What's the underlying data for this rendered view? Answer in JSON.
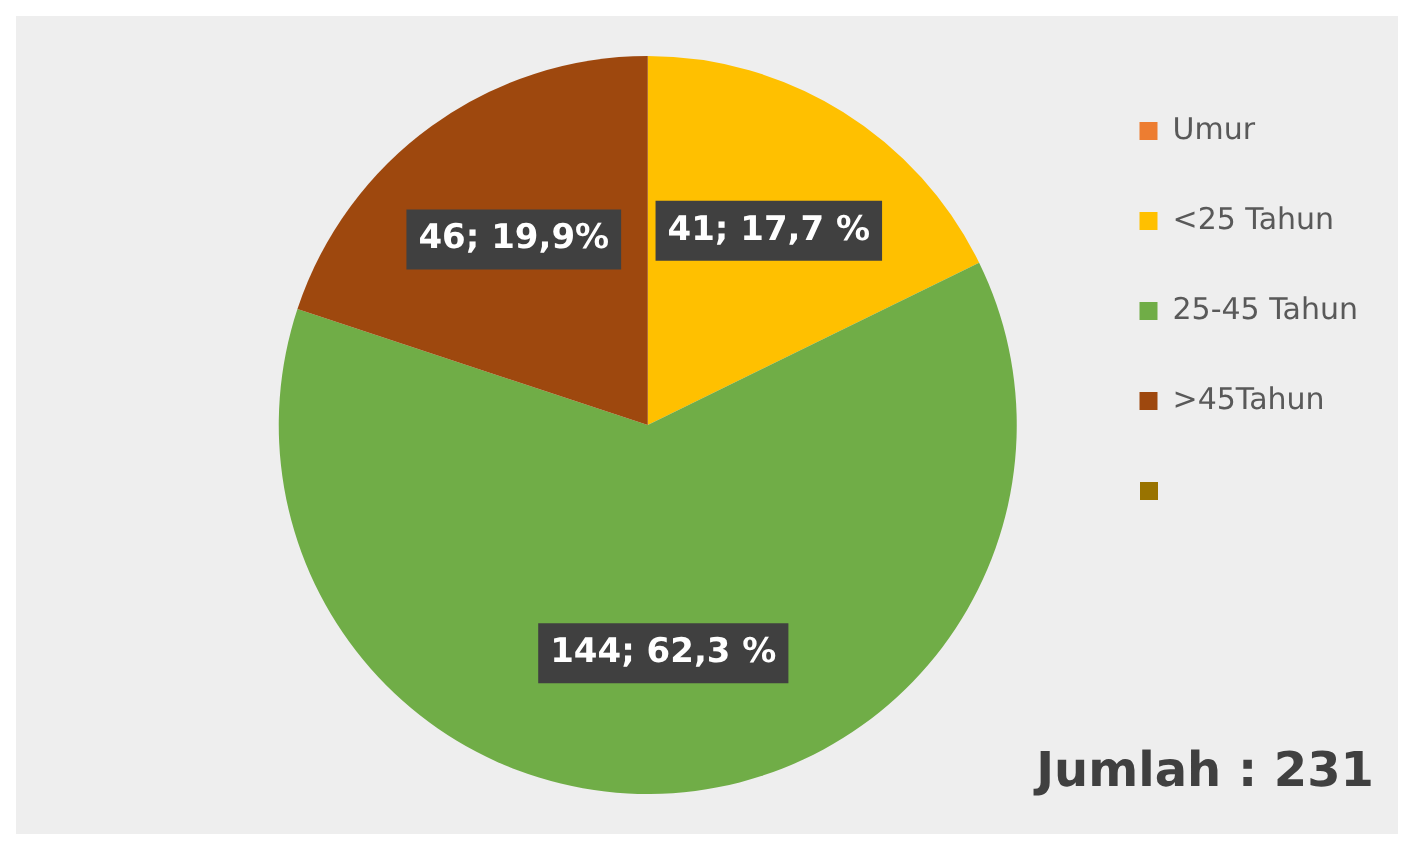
{
  "chart_data": {
    "type": "pie",
    "categories": [
      "Umur",
      "<25 Tahun",
      "25-45 Tahun",
      ">45Tahun",
      null
    ],
    "values": [
      0,
      41,
      144,
      46,
      0
    ],
    "colors": [
      "#ed7d31",
      "#ffc000",
      "#70ad47",
      "#9e480e",
      "#997300"
    ],
    "value_labels": [
      null,
      "41; 17,7 %",
      "144; 62,3 %",
      "46; 19,9%",
      null
    ],
    "legend": "right",
    "annotations": [
      "Jumlah : 231"
    ]
  }
}
